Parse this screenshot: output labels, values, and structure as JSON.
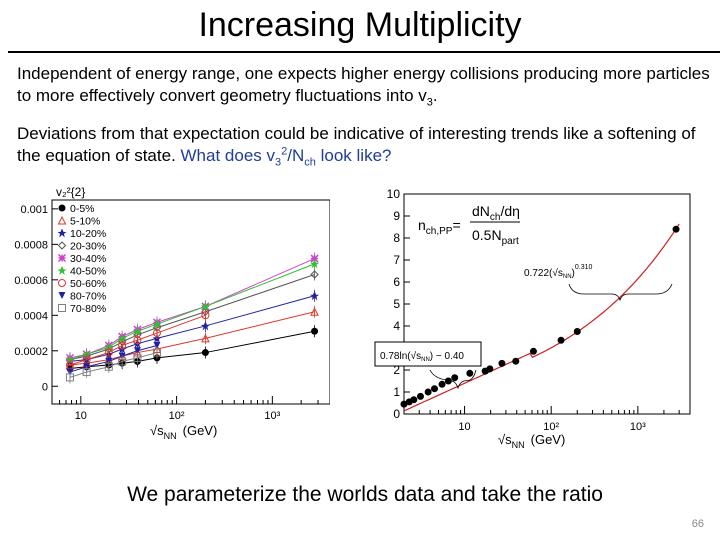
{
  "slide": {
    "title": "Increasing Multiplicity",
    "para1": {
      "text": "Independent of energy range, one expects higher energy collisions producing more particles to more effectively convert geometry fluctuations into v",
      "sub": "3",
      "end": "."
    },
    "para2": {
      "text": "Deviations from that expectation could be indicative of interesting trends like a softening of the equation of state. ",
      "question_pre": "What does v",
      "question_sub": "3",
      "question_sup": "2",
      "question_mid": "/N",
      "question_sub2": "ch",
      "question_end": " look like?"
    },
    "bottom_text": "We parameterize the worlds data and take the ratio",
    "page_number": "66"
  },
  "chart_data": [
    {
      "type": "line",
      "ylabel": "v₂²{2}",
      "xlabel": "√s",
      "xlabel_sub": "NN",
      "xlabel_unit": "(GeV)",
      "x_scale": "log",
      "x_ticks": [
        "10",
        "10²",
        "10³"
      ],
      "y_ticks": [
        "0",
        "0.0002",
        "0.0004",
        "0.0006",
        "0.0008",
        "0.001"
      ],
      "ylim": [
        -0.0001,
        0.00105
      ],
      "xlim": [
        5,
        4000
      ],
      "legend_placement": "top-left",
      "x": [
        7.7,
        11.5,
        19.6,
        27,
        39,
        62.4,
        200,
        2760
      ],
      "series": [
        {
          "name": "0-5%",
          "color": "#000000",
          "marker": "circle",
          "values": [
            0.0001,
            0.00011,
            0.00012,
            0.00013,
            0.00014,
            0.00016,
            0.00019,
            0.00031
          ]
        },
        {
          "name": "5-10%",
          "color": "#e0362a",
          "marker": "triangle",
          "values": [
            0.00012,
            0.00013,
            0.00015,
            0.00017,
            0.00019,
            0.00021,
            0.00027,
            0.00042
          ]
        },
        {
          "name": "10-20%",
          "color": "#2020a0",
          "marker": "star",
          "values": [
            0.00014,
            0.00015,
            0.00018,
            0.00021,
            0.00024,
            0.00027,
            0.00034,
            0.00051
          ]
        },
        {
          "name": "20-30%",
          "color": "#555555",
          "marker": "diamond",
          "values": [
            0.00015,
            0.00017,
            0.00021,
            0.00025,
            0.00029,
            0.00033,
            0.00042,
            0.00063
          ]
        },
        {
          "name": "30-40%",
          "color": "#d040d0",
          "marker": "cross",
          "values": [
            0.00016,
            0.00018,
            0.00023,
            0.00028,
            0.00032,
            0.00036,
            0.00045,
            0.00072
          ]
        },
        {
          "name": "40-50%",
          "color": "#30c030",
          "marker": "star",
          "values": [
            0.00015,
            0.00018,
            0.00022,
            0.00027,
            0.00031,
            0.00035,
            0.00045,
            0.00069
          ]
        },
        {
          "name": "50-60%",
          "color": "#e0362a",
          "marker": "circle-open",
          "values": [
            0.00012,
            0.00015,
            0.00019,
            0.00023,
            0.00026,
            0.0003,
            0.0004,
            null
          ]
        },
        {
          "name": "80-70%",
          "color": "#2020a0",
          "marker": "triangle-down",
          "values": [
            8e-05,
            0.00011,
            0.00014,
            0.00017,
            0.0002,
            0.00023,
            null,
            null
          ]
        },
        {
          "name": "70-80%",
          "color": "#808080",
          "marker": "square-open",
          "values": [
            5e-05,
            8e-05,
            0.00011,
            0.00014,
            0.00016,
            0.00019,
            null,
            null
          ]
        }
      ]
    },
    {
      "type": "scatter",
      "ylabel_lhs": "n",
      "ylabel_lhs_sub": "ch,PP",
      "ylabel_eq": "=",
      "ylabel_num": "dN",
      "ylabel_num_sub": "ch",
      "ylabel_num_end": "/dη",
      "ylabel_den": "0.5N",
      "ylabel_den_sub": "part",
      "xlabel": "√s",
      "xlabel_sub": "NN",
      "xlabel_unit": "(GeV)",
      "x_scale": "log",
      "x_ticks": [
        "10",
        "10²",
        "10³"
      ],
      "y_ticks": [
        "0",
        "1",
        "2",
        "3",
        "4",
        "5",
        "6",
        "7",
        "8",
        "9",
        "10"
      ],
      "ylim": [
        0,
        10
      ],
      "xlim": [
        2,
        4000
      ],
      "x": [
        2.0,
        2.3,
        2.6,
        3.1,
        3.8,
        4.5,
        5.5,
        6.5,
        7.7,
        11.5,
        17.3,
        19.6,
        27,
        39,
        62.4,
        130,
        200,
        2760
      ],
      "values": [
        0.45,
        0.55,
        0.65,
        0.8,
        1.0,
        1.15,
        1.35,
        1.5,
        1.65,
        1.85,
        1.95,
        2.05,
        2.3,
        2.4,
        2.85,
        3.35,
        3.75,
        8.4
      ],
      "fit_color": "#d02020",
      "fit_lower_label": {
        "coef": "0.78",
        "fn": "ln",
        "tail": "0.40"
      },
      "fit_upper_label": {
        "coef": "0.722",
        "exp": "0.310"
      }
    }
  ]
}
